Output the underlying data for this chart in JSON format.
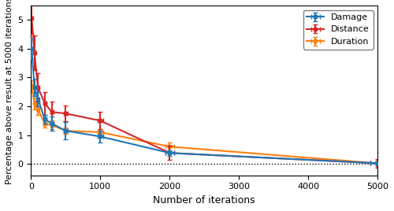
{
  "x_points": [
    10,
    50,
    100,
    200,
    300,
    500,
    1000,
    2000,
    5000
  ],
  "damage_y": [
    4.0,
    2.65,
    2.25,
    1.55,
    1.4,
    1.15,
    0.95,
    0.38,
    0.02
  ],
  "damage_yerr": [
    0.35,
    0.3,
    0.25,
    0.15,
    0.25,
    0.3,
    0.2,
    0.1,
    0.07
  ],
  "damage_xerr": [
    5,
    10,
    15,
    20,
    25,
    30,
    40,
    60,
    100
  ],
  "distance_y": [
    5.05,
    3.85,
    2.65,
    2.1,
    1.8,
    1.75,
    1.5,
    0.38,
    0.02
  ],
  "distance_yerr": [
    0.5,
    0.6,
    0.5,
    0.4,
    0.35,
    0.28,
    0.3,
    0.25,
    0.15
  ],
  "distance_xerr": [
    5,
    10,
    15,
    20,
    25,
    30,
    40,
    60,
    100
  ],
  "duration_y": [
    2.7,
    2.1,
    1.9,
    1.4,
    1.35,
    1.15,
    1.1,
    0.6,
    0.02
  ],
  "duration_yerr": [
    0.2,
    0.2,
    0.2,
    0.15,
    0.15,
    0.12,
    0.12,
    0.15,
    0.1
  ],
  "duration_xerr": [
    5,
    10,
    15,
    20,
    25,
    30,
    40,
    60,
    100
  ],
  "damage_color": "#1f77b4",
  "distance_color": "#d62728",
  "duration_color": "#ff7f0e",
  "xlabel": "Number of iterations",
  "ylabel": "Percentage above result at 5000 iterations",
  "ylim": [
    -0.4,
    5.5
  ],
  "xlim": [
    0,
    5000
  ],
  "dotted_y": 0.0,
  "legend_labels": [
    "Damage",
    "Distance",
    "Duration"
  ]
}
